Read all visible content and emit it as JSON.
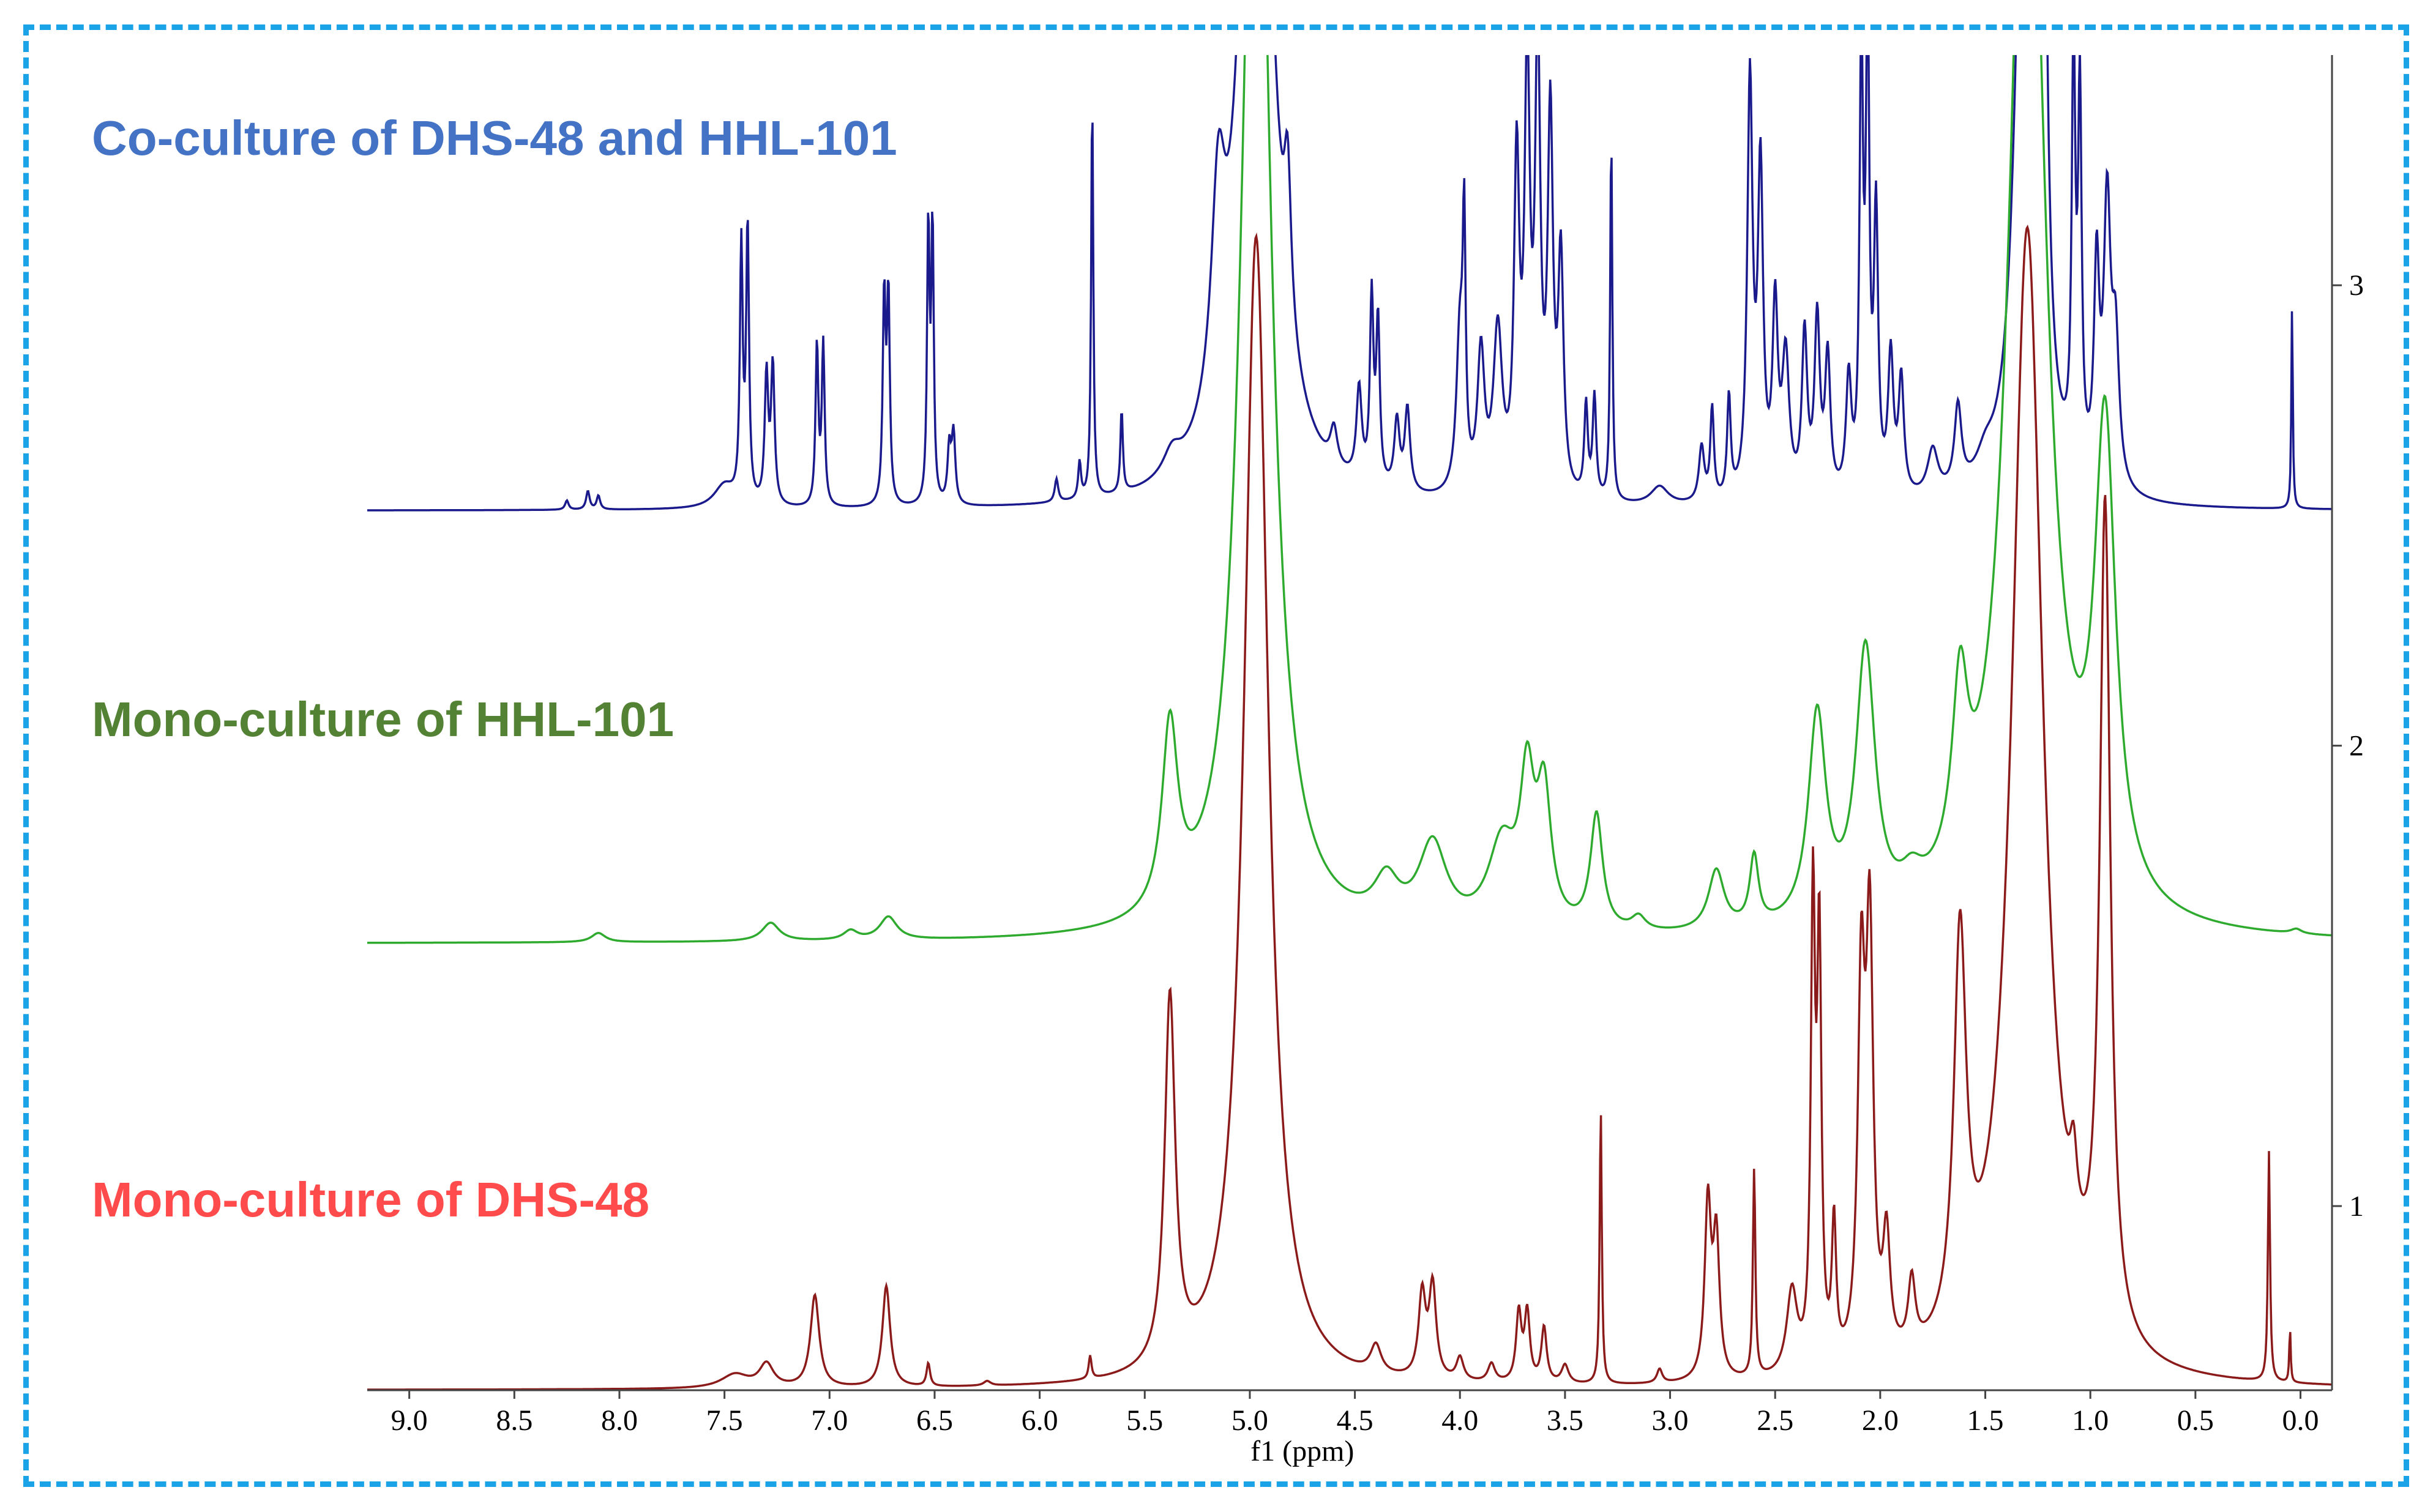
{
  "labels": {
    "coculture": "Co-culture of DHS-48 and HHL-101",
    "hhl": "Mono-culture of HHL-101",
    "dhs": "Mono-culture of DHS-48"
  },
  "colors": {
    "coculture_text": "#4472c4",
    "hhl_text": "#548235",
    "dhs_text": "#ff4b4b",
    "coculture_line": "#1a1a8c",
    "hhl_line": "#2eaa2e",
    "dhs_line": "#8b1a1a",
    "frame": "#1aa3e6"
  },
  "chart_data": {
    "type": "line",
    "xlabel": "f1 (ppm)",
    "xlim": [
      9.2,
      -0.15
    ],
    "x_reversed": true,
    "x_ticks": [
      "9.0",
      "8.5",
      "8.0",
      "7.5",
      "7.0",
      "6.5",
      "6.0",
      "5.5",
      "5.0",
      "4.5",
      "4.0",
      "3.5",
      "3.0",
      "2.5",
      "2.0",
      "1.5",
      "1.0",
      "0.5",
      "0.0"
    ],
    "y_ticks": [
      "1",
      "2",
      "3"
    ],
    "ylim": [
      0.6,
      3.5
    ],
    "series": [
      {
        "name": "Co-culture of DHS-48 and HHL-101",
        "baseline": 2.51,
        "peaks": [
          [
            8.25,
            0.02,
            0.01
          ],
          [
            8.15,
            0.04,
            0.01
          ],
          [
            8.1,
            0.03,
            0.01
          ],
          [
            7.5,
            0.05,
            0.06
          ],
          [
            7.42,
            0.55,
            0.008
          ],
          [
            7.39,
            0.6,
            0.008
          ],
          [
            7.3,
            0.28,
            0.01
          ],
          [
            7.27,
            0.3,
            0.01
          ],
          [
            7.06,
            0.35,
            0.008
          ],
          [
            7.03,
            0.35,
            0.008
          ],
          [
            6.74,
            0.45,
            0.008
          ],
          [
            6.72,
            0.45,
            0.008
          ],
          [
            6.53,
            0.6,
            0.007
          ],
          [
            6.51,
            0.6,
            0.007
          ],
          [
            6.43,
            0.12,
            0.01
          ],
          [
            6.41,
            0.15,
            0.01
          ],
          [
            5.92,
            0.05,
            0.01
          ],
          [
            5.81,
            0.08,
            0.008
          ],
          [
            5.75,
            0.88,
            0.006
          ],
          [
            5.61,
            0.18,
            0.007
          ],
          [
            5.37,
            0.05,
            0.05
          ],
          [
            4.97,
            2.2,
            0.08
          ],
          [
            5.15,
            0.45,
            0.04
          ],
          [
            4.82,
            0.32,
            0.02
          ],
          [
            4.6,
            0.08,
            0.02
          ],
          [
            4.48,
            0.2,
            0.015
          ],
          [
            4.42,
            0.4,
            0.01
          ],
          [
            4.39,
            0.35,
            0.01
          ],
          [
            4.3,
            0.15,
            0.015
          ],
          [
            4.25,
            0.18,
            0.015
          ],
          [
            4.0,
            0.35,
            0.02
          ],
          [
            3.98,
            0.5,
            0.008
          ],
          [
            3.9,
            0.3,
            0.02
          ],
          [
            3.82,
            0.35,
            0.025
          ],
          [
            3.73,
            0.7,
            0.015
          ],
          [
            3.68,
            0.9,
            0.015
          ],
          [
            3.63,
            0.95,
            0.015
          ],
          [
            3.57,
            0.8,
            0.015
          ],
          [
            3.52,
            0.5,
            0.015
          ],
          [
            3.4,
            0.2,
            0.01
          ],
          [
            3.36,
            0.22,
            0.01
          ],
          [
            3.28,
            0.8,
            0.006
          ],
          [
            3.05,
            0.04,
            0.05
          ],
          [
            2.85,
            0.12,
            0.015
          ],
          [
            2.8,
            0.2,
            0.01
          ],
          [
            2.72,
            0.22,
            0.01
          ],
          [
            2.62,
            0.9,
            0.015
          ],
          [
            2.57,
            0.7,
            0.015
          ],
          [
            2.5,
            0.4,
            0.015
          ],
          [
            2.45,
            0.3,
            0.02
          ],
          [
            2.36,
            0.35,
            0.015
          ],
          [
            2.3,
            0.38,
            0.015
          ],
          [
            2.25,
            0.3,
            0.015
          ],
          [
            2.15,
            0.25,
            0.015
          ],
          [
            2.09,
            0.95,
            0.01
          ],
          [
            2.06,
            1.0,
            0.01
          ],
          [
            2.02,
            0.6,
            0.012
          ],
          [
            1.95,
            0.3,
            0.015
          ],
          [
            1.9,
            0.25,
            0.015
          ],
          [
            1.75,
            0.1,
            0.03
          ],
          [
            1.63,
            0.18,
            0.02
          ],
          [
            1.5,
            0.05,
            0.05
          ],
          [
            1.32,
            1.2,
            0.05
          ],
          [
            1.27,
            1.4,
            0.03
          ],
          [
            1.22,
            0.9,
            0.02
          ],
          [
            1.08,
            0.9,
            0.01
          ],
          [
            1.05,
            0.8,
            0.01
          ],
          [
            0.97,
            0.45,
            0.015
          ],
          [
            0.92,
            0.6,
            0.02
          ],
          [
            0.88,
            0.3,
            0.02
          ],
          [
            0.04,
            0.45,
            0.004
          ]
        ]
      },
      {
        "name": "Mono-culture of HHL-101",
        "baseline": 1.57,
        "peaks": [
          [
            8.1,
            0.02,
            0.04
          ],
          [
            7.28,
            0.04,
            0.05
          ],
          [
            6.9,
            0.02,
            0.04
          ],
          [
            6.72,
            0.05,
            0.05
          ],
          [
            5.38,
            0.4,
            0.045
          ],
          [
            4.97,
            2.8,
            0.08
          ],
          [
            4.35,
            0.09,
            0.07
          ],
          [
            4.13,
            0.18,
            0.08
          ],
          [
            3.8,
            0.18,
            0.08
          ],
          [
            3.68,
            0.3,
            0.04
          ],
          [
            3.6,
            0.28,
            0.04
          ],
          [
            3.35,
            0.25,
            0.035
          ],
          [
            3.15,
            0.03,
            0.04
          ],
          [
            2.78,
            0.13,
            0.045
          ],
          [
            2.6,
            0.15,
            0.025
          ],
          [
            2.3,
            0.45,
            0.05
          ],
          [
            2.07,
            0.58,
            0.055
          ],
          [
            1.85,
            0.05,
            0.06
          ],
          [
            1.62,
            0.38,
            0.045
          ],
          [
            1.3,
            2.7,
            0.1
          ],
          [
            0.93,
            1.0,
            0.06
          ],
          [
            0.02,
            0.01,
            0.03
          ]
        ]
      },
      {
        "name": "Mono-culture of DHS-48",
        "baseline": 0.6,
        "peaks": [
          [
            7.45,
            0.03,
            0.08
          ],
          [
            7.3,
            0.05,
            0.04
          ],
          [
            7.07,
            0.2,
            0.025
          ],
          [
            6.73,
            0.22,
            0.022
          ],
          [
            6.53,
            0.05,
            0.01
          ],
          [
            6.25,
            0.01,
            0.02
          ],
          [
            5.76,
            0.05,
            0.008
          ],
          [
            5.38,
            0.8,
            0.03
          ],
          [
            4.97,
            2.5,
            0.07
          ],
          [
            4.4,
            0.06,
            0.03
          ],
          [
            4.18,
            0.18,
            0.02
          ],
          [
            4.13,
            0.2,
            0.02
          ],
          [
            4.0,
            0.05,
            0.02
          ],
          [
            3.85,
            0.04,
            0.02
          ],
          [
            3.72,
            0.15,
            0.015
          ],
          [
            3.68,
            0.15,
            0.015
          ],
          [
            3.6,
            0.12,
            0.015
          ],
          [
            3.5,
            0.04,
            0.02
          ],
          [
            3.33,
            0.6,
            0.006
          ],
          [
            3.05,
            0.03,
            0.015
          ],
          [
            2.82,
            0.38,
            0.018
          ],
          [
            2.78,
            0.3,
            0.018
          ],
          [
            2.6,
            0.45,
            0.007
          ],
          [
            2.42,
            0.18,
            0.03
          ],
          [
            2.32,
            1.0,
            0.012
          ],
          [
            2.29,
            0.9,
            0.012
          ],
          [
            2.22,
            0.3,
            0.012
          ],
          [
            2.09,
            0.8,
            0.02
          ],
          [
            2.05,
            0.9,
            0.02
          ],
          [
            1.97,
            0.25,
            0.02
          ],
          [
            1.85,
            0.15,
            0.02
          ],
          [
            1.62,
            0.85,
            0.035
          ],
          [
            1.3,
            2.5,
            0.09
          ],
          [
            1.08,
            0.15,
            0.02
          ],
          [
            0.93,
            1.8,
            0.03
          ],
          [
            0.15,
            0.5,
            0.006
          ],
          [
            0.05,
            0.12,
            0.004
          ]
        ]
      }
    ]
  }
}
